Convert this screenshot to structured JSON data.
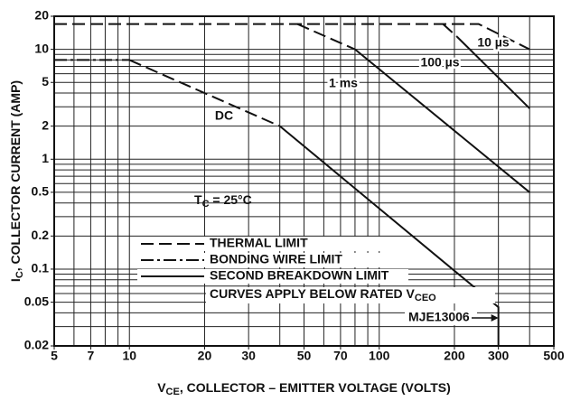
{
  "chart_data": {
    "type": "line",
    "log_x": true,
    "log_y": true,
    "grid": true,
    "xlim": [
      5,
      500
    ],
    "ylim": [
      0.02,
      20
    ],
    "xticks": [
      5,
      7,
      10,
      20,
      30,
      50,
      70,
      100,
      200,
      300,
      500
    ],
    "yticks": [
      0.02,
      0.05,
      0.1,
      0.2,
      0.5,
      1,
      2,
      5,
      10,
      20
    ],
    "xgrid": [
      5,
      6,
      7,
      8,
      9,
      10,
      20,
      30,
      40,
      50,
      60,
      70,
      80,
      90,
      100,
      200,
      300,
      400,
      500
    ],
    "ygrid": [
      0.02,
      0.03,
      0.04,
      0.05,
      0.06,
      0.07,
      0.08,
      0.09,
      0.1,
      0.2,
      0.3,
      0.4,
      0.5,
      0.6,
      0.7,
      0.8,
      0.9,
      1,
      2,
      3,
      4,
      5,
      6,
      7,
      8,
      9,
      10,
      20
    ],
    "xlabel": {
      "main": "V",
      "sub": "CE",
      "rest": ", COLLECTOR – EMITTER VOLTAGE (VOLTS)"
    },
    "ylabel": {
      "main": "I",
      "sub": "C",
      "rest": ", COLLECTOR CURRENT (AMP)"
    },
    "annotation": {
      "main": "T",
      "sub": "C",
      "rest": " = 25°C"
    },
    "device": "MJE13006",
    "color": "#111111",
    "styles": {
      "thermal": "14 6",
      "bonding": "14 4 3 4",
      "second": "none"
    },
    "legend": [
      {
        "label": "THERMAL LIMIT",
        "style": "thermal"
      },
      {
        "label": "BONDING WIRE LIMIT",
        "style": "bonding"
      },
      {
        "label": "SECOND BREAKDOWN LIMIT",
        "style": "second"
      }
    ],
    "note": {
      "main": "CURVES APPLY BELOW RATED V",
      "sub": "CEO"
    },
    "series": [
      {
        "name": "DC",
        "segments": [
          {
            "style": "bonding",
            "x": [
              5,
              10
            ],
            "values": [
              8,
              8
            ]
          },
          {
            "style": "thermal",
            "x": [
              10,
              40
            ],
            "values": [
              8,
              2
            ]
          },
          {
            "style": "second",
            "x": [
              40,
              300,
              300
            ],
            "values": [
              2,
              0.045,
              0.02
            ]
          }
        ]
      },
      {
        "name": "1 ms",
        "segments": [
          {
            "style": "thermal",
            "x": [
              47,
              80
            ],
            "values": [
              17,
              10
            ]
          },
          {
            "style": "second",
            "x": [
              80,
              400
            ],
            "values": [
              10,
              0.5
            ]
          }
        ]
      },
      {
        "name": "100 µs",
        "segments": [
          {
            "style": "thermal",
            "x": [
              180,
              205
            ],
            "values": [
              17,
              13
            ]
          },
          {
            "style": "second",
            "x": [
              205,
              400
            ],
            "values": [
              13,
              2.9
            ]
          }
        ]
      },
      {
        "name": "10 µs",
        "segments": [
          {
            "style": "thermal",
            "x": [
              5,
              250,
              400
            ],
            "values": [
              17,
              17,
              10
            ]
          }
        ]
      }
    ]
  }
}
